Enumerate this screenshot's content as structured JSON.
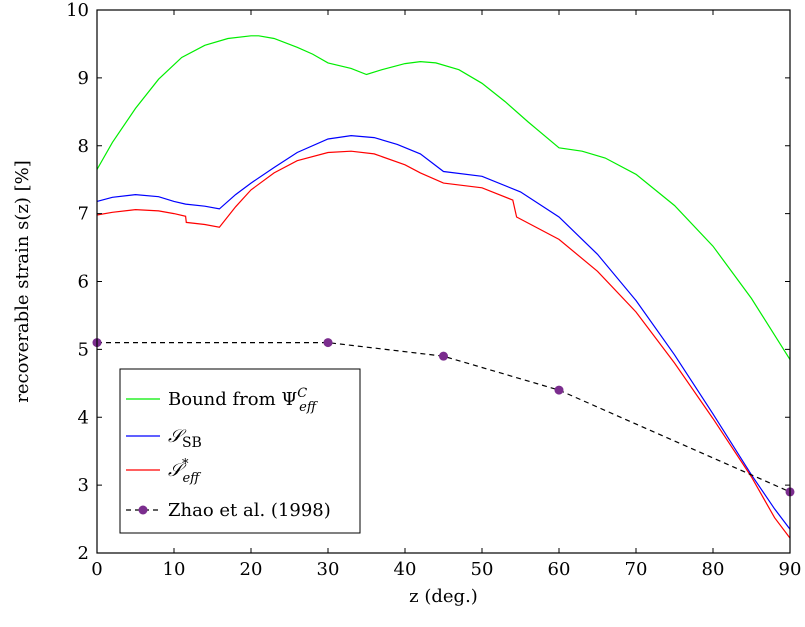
{
  "chart_data": {
    "type": "line",
    "xlabel": "z (deg.)",
    "ylabel": "recoverable strain s(z) [%]",
    "xlim": [
      0,
      90
    ],
    "ylim": [
      2,
      10
    ],
    "x_ticks": [
      "0",
      "10",
      "20",
      "30",
      "40",
      "50",
      "60",
      "70",
      "80",
      "90"
    ],
    "y_ticks": [
      "2",
      "3",
      "4",
      "5",
      "6",
      "7",
      "8",
      "9",
      "10"
    ],
    "grid": false,
    "legend_position": "bottom-left",
    "series": [
      {
        "name": "Bound from Ψ^C_eff",
        "color": "#00ee00",
        "style": "solid",
        "x": [
          0,
          2,
          5,
          8,
          11,
          14,
          17,
          20,
          21,
          23,
          26,
          28,
          30,
          33,
          35,
          37,
          40,
          42,
          44,
          47,
          50,
          53,
          56,
          60,
          63,
          66,
          70,
          75,
          80,
          85,
          90
        ],
        "y": [
          7.65,
          8.05,
          8.55,
          8.98,
          9.3,
          9.48,
          9.58,
          9.62,
          9.62,
          9.58,
          9.45,
          9.35,
          9.22,
          9.14,
          9.05,
          9.12,
          9.21,
          9.24,
          9.22,
          9.12,
          8.92,
          8.65,
          8.35,
          7.97,
          7.92,
          7.82,
          7.58,
          7.12,
          6.52,
          5.75,
          4.85
        ]
      },
      {
        "name": "S_SB",
        "color": "#0000ff",
        "style": "solid",
        "x": [
          0,
          2,
          5,
          8,
          10,
          11.5,
          14,
          15.9,
          18,
          20,
          23,
          26,
          30,
          33,
          36,
          39,
          42,
          45,
          50,
          55,
          60,
          65,
          70,
          75,
          80,
          85,
          88,
          90
        ],
        "y": [
          7.18,
          7.24,
          7.28,
          7.25,
          7.18,
          7.14,
          7.11,
          7.07,
          7.28,
          7.45,
          7.68,
          7.9,
          8.1,
          8.15,
          8.12,
          8.02,
          7.88,
          7.62,
          7.55,
          7.32,
          6.95,
          6.4,
          5.72,
          4.92,
          4.05,
          3.15,
          2.65,
          2.35
        ]
      },
      {
        "name": "S*_eff",
        "color": "#ff0000",
        "style": "solid",
        "x": [
          0,
          2,
          5,
          8,
          10,
          11.5,
          11.6,
          14,
          15.9,
          18,
          20,
          23,
          26,
          30,
          33,
          36,
          40,
          42,
          45,
          50,
          54,
          54.5,
          60,
          65,
          70,
          75,
          80,
          85,
          88,
          90
        ],
        "y": [
          6.98,
          7.02,
          7.06,
          7.04,
          7.0,
          6.96,
          6.87,
          6.84,
          6.8,
          7.1,
          7.35,
          7.6,
          7.78,
          7.9,
          7.92,
          7.88,
          7.72,
          7.6,
          7.45,
          7.38,
          7.2,
          6.95,
          6.62,
          6.15,
          5.55,
          4.8,
          3.98,
          3.12,
          2.52,
          2.22
        ]
      },
      {
        "name": "Zhao et al. (1998)",
        "color": "#000000",
        "marker_color": "#7b2d8e",
        "style": "dashed",
        "marker": "circle",
        "x": [
          0,
          30,
          45,
          60,
          90
        ],
        "y": [
          5.1,
          5.1,
          4.9,
          4.4,
          2.9
        ]
      }
    ]
  }
}
